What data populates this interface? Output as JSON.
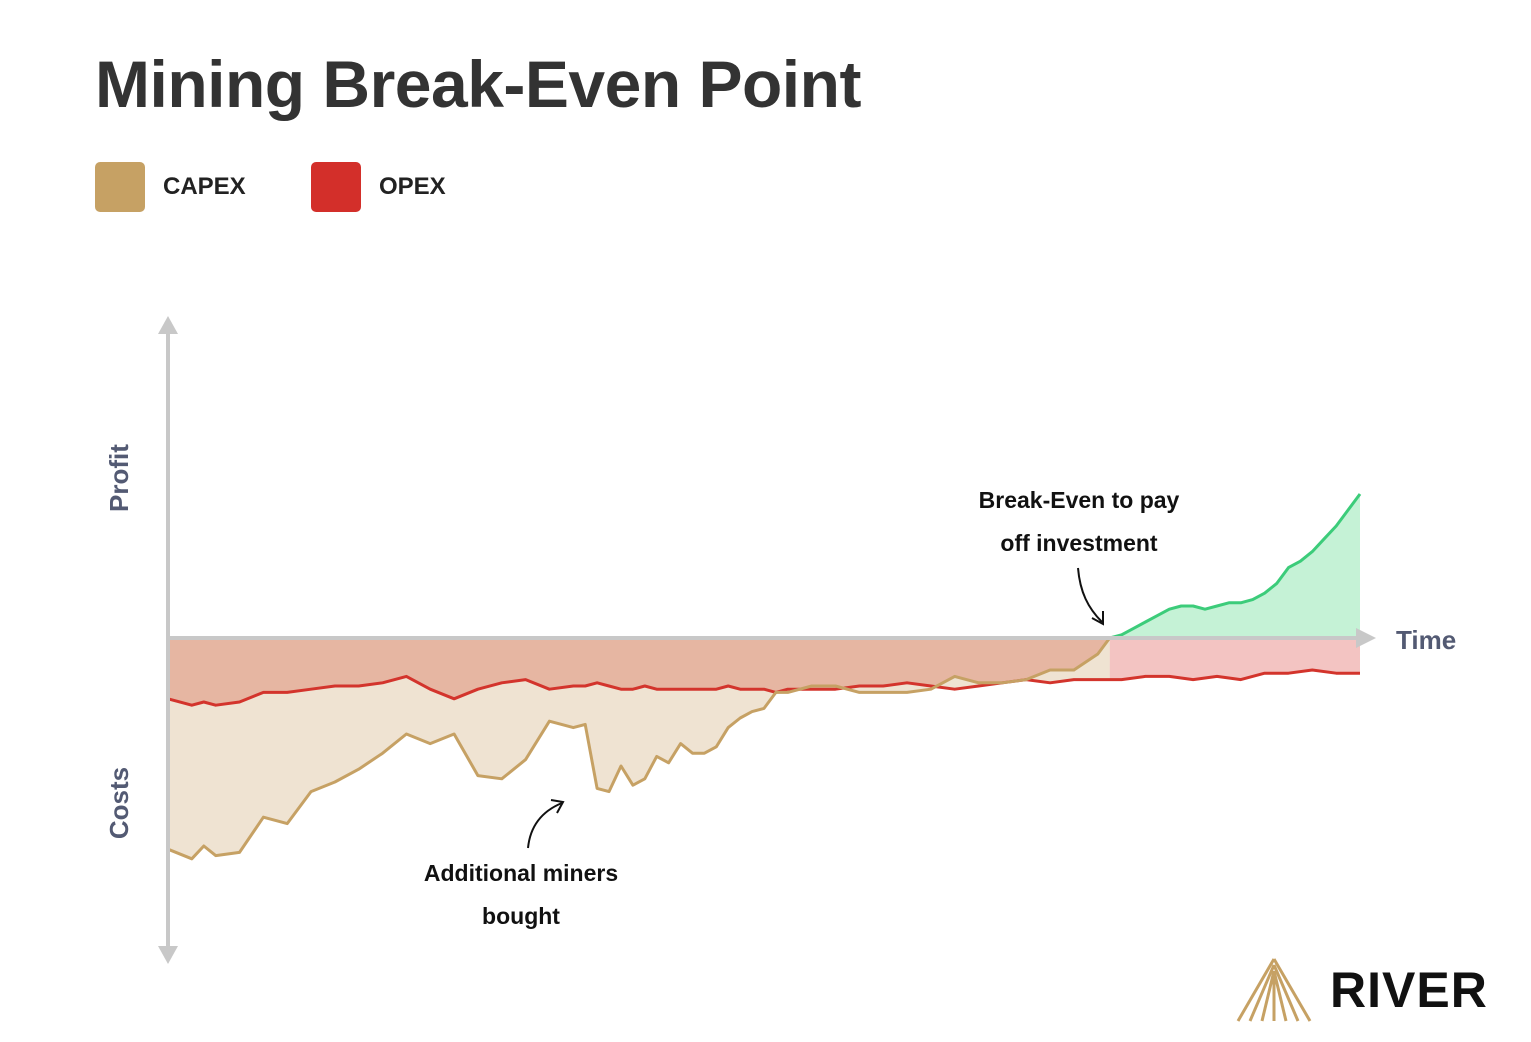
{
  "title": "Mining Break-Even Point",
  "legend": [
    {
      "label": "CAPEX",
      "color": "#c6a164"
    },
    {
      "label": "OPEX",
      "color": "#d32f2a"
    }
  ],
  "brand": {
    "name": "RIVER"
  },
  "colors": {
    "axis": "#c8c8c8",
    "capex_line": "#c6a164",
    "capex_fill": "#efe3d2",
    "opex_line": "#d3342c",
    "opex_fill_before": "#e6b6a2",
    "opex_fill_after": "#f3c4c2",
    "profit_line": "#3ccc7a",
    "profit_fill": "#c5f2d6",
    "axis_label": "#535a73"
  },
  "chart_data": {
    "type": "area",
    "title": "Mining Break-Even Point",
    "xlabel": "Time",
    "ylabel_top": "Profit",
    "ylabel_bottom": "Costs",
    "xlim": [
      0,
      100
    ],
    "ylim": [
      -100,
      100
    ],
    "break_even_x": 79,
    "series": [
      {
        "name": "CAPEX",
        "x": [
          0,
          2,
          3,
          4,
          6,
          8,
          10,
          12,
          14,
          16,
          18,
          20,
          22,
          24,
          26,
          28,
          30,
          32,
          34,
          35,
          36,
          37,
          38,
          39,
          40,
          41,
          42,
          43,
          44,
          45,
          46,
          47,
          48,
          49,
          50,
          51,
          52,
          54,
          56,
          58,
          60,
          62,
          64,
          66,
          68,
          70,
          72,
          74,
          76,
          78,
          79
        ],
        "y": [
          -66,
          -69,
          -65,
          -68,
          -67,
          -56,
          -58,
          -48,
          -45,
          -41,
          -36,
          -30,
          -33,
          -30,
          -43,
          -44,
          -38,
          -26,
          -28,
          -27,
          -47,
          -48,
          -40,
          -46,
          -44,
          -37,
          -39,
          -33,
          -36,
          -36,
          -34,
          -28,
          -25,
          -23,
          -22,
          -17,
          -17,
          -15,
          -15,
          -17,
          -17,
          -17,
          -16,
          -12,
          -14,
          -14,
          -13,
          -10,
          -10,
          -5,
          0
        ]
      },
      {
        "name": "OPEX",
        "x": [
          0,
          2,
          3,
          4,
          6,
          8,
          10,
          12,
          14,
          16,
          18,
          20,
          22,
          24,
          26,
          28,
          30,
          32,
          34,
          35,
          36,
          37,
          38,
          39,
          40,
          41,
          42,
          43,
          44,
          45,
          46,
          47,
          48,
          49,
          50,
          51,
          52,
          54,
          56,
          58,
          60,
          62,
          64,
          66,
          68,
          70,
          72,
          74,
          76,
          78,
          79,
          80,
          82,
          84,
          86,
          88,
          90,
          92,
          94,
          96,
          98,
          100
        ],
        "y": [
          -19,
          -21,
          -20,
          -21,
          -20,
          -17,
          -17,
          -16,
          -15,
          -15,
          -14,
          -12,
          -16,
          -19,
          -16,
          -14,
          -13,
          -16,
          -15,
          -15,
          -14,
          -15,
          -16,
          -16,
          -15,
          -16,
          -16,
          -16,
          -16,
          -16,
          -16,
          -15,
          -16,
          -16,
          -16,
          -17,
          -16,
          -16,
          -16,
          -15,
          -15,
          -14,
          -15,
          -16,
          -15,
          -14,
          -13,
          -14,
          -13,
          -13,
          -13,
          -13,
          -12,
          -12,
          -13,
          -12,
          -13,
          -11,
          -11,
          -10,
          -11,
          -11
        ]
      },
      {
        "name": "Profit",
        "x": [
          79,
          80,
          81,
          82,
          83,
          84,
          85,
          86,
          87,
          88,
          89,
          90,
          91,
          92,
          93,
          94,
          95,
          96,
          97,
          98,
          99,
          100
        ],
        "y": [
          0,
          1,
          3,
          5,
          7,
          9,
          10,
          10,
          9,
          10,
          11,
          11,
          12,
          14,
          17,
          22,
          24,
          27,
          31,
          35,
          40,
          45
        ]
      }
    ],
    "annotations": [
      {
        "text": "Break-Even to pay off investment",
        "x": 79,
        "y": 0
      },
      {
        "text": "Additional miners bought",
        "x": 34.5,
        "y": -48
      }
    ],
    "grid": false
  }
}
